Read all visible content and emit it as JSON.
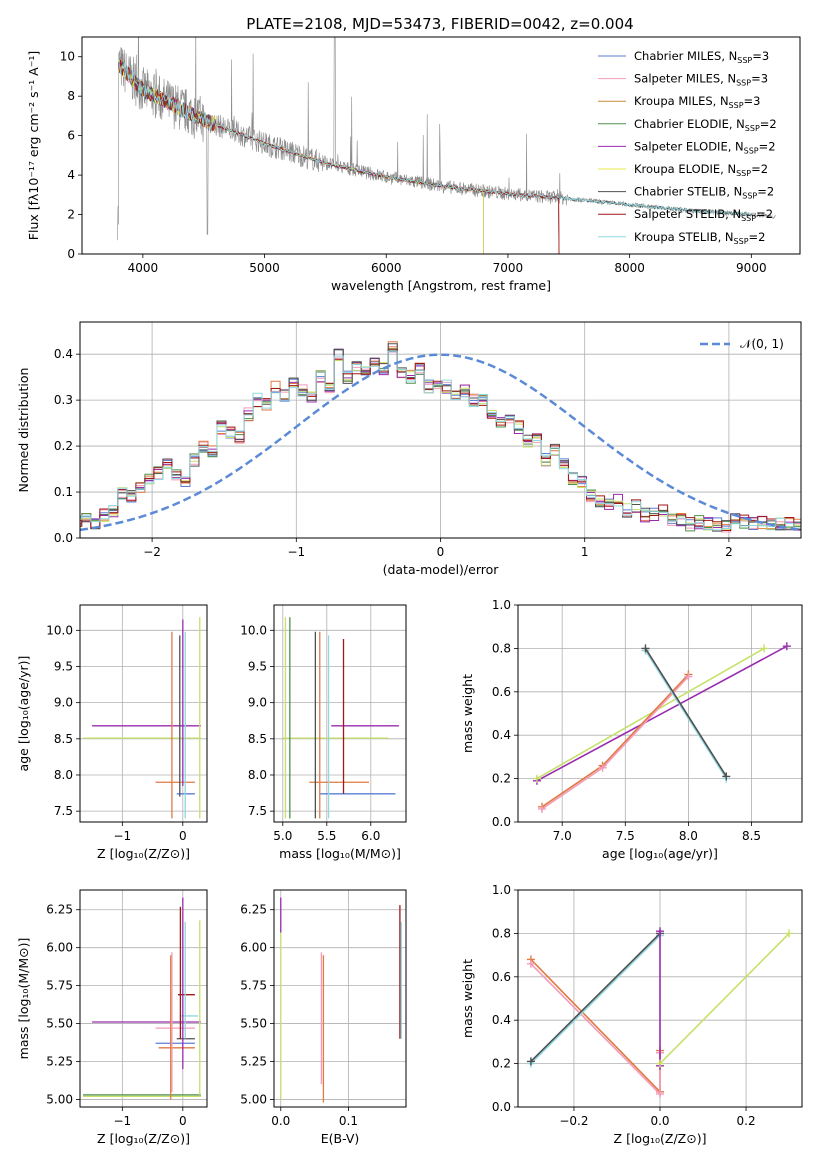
{
  "figure": {
    "title": "PLATE=2108, MJD=53473, FIBERID=0042, z=0.004"
  },
  "colors": {
    "Chabrier MILES": "#5b7fd3",
    "Salpeter MILES": "#f29bb8",
    "Kroupa MILES": "#c98a3a",
    "Chabrier ELODIE": "#4f8f4f",
    "Salpeter ELODIE": "#9a2cb0",
    "Kroupa ELODIE": "#e8e84a",
    "Chabrier STELIB": "#505050",
    "Salpeter STELIB": "#a01818",
    "Kroupa STELIB": "#8fd8e0",
    "data": "#8a8a8a",
    "gaussian": "#5b8bd6",
    "orange_model": "#e07a40",
    "green_model": "#c6e06a"
  },
  "legend_entries": [
    {
      "name": "Chabrier MILES",
      "nssp": "3"
    },
    {
      "name": "Salpeter MILES",
      "nssp": "3"
    },
    {
      "name": "Kroupa MILES",
      "nssp": "3"
    },
    {
      "name": "Chabrier ELODIE",
      "nssp": "2"
    },
    {
      "name": "Salpeter ELODIE",
      "nssp": "2"
    },
    {
      "name": "Kroupa ELODIE",
      "nssp": "2"
    },
    {
      "name": "Chabrier STELIB",
      "nssp": "2"
    },
    {
      "name": "Salpeter STELIB",
      "nssp": "2"
    },
    {
      "name": "Kroupa STELIB",
      "nssp": "2"
    }
  ],
  "chart_data": [
    {
      "id": "spectrum",
      "type": "line",
      "title": "PLATE=2108, MJD=53473, FIBERID=0042, z=0.004",
      "xlabel": "wavelength [Angstrom, rest frame]",
      "ylabel": "Flux [fλ10⁻¹⁷ erg cm⁻² s⁻¹ A⁻¹]",
      "xlim": [
        3500,
        9400
      ],
      "ylim": [
        0,
        11
      ],
      "xticks": [
        4000,
        5000,
        6000,
        7000,
        8000,
        9000
      ],
      "yticks": [
        0,
        2,
        4,
        6,
        8,
        10
      ],
      "grid": false,
      "legend": "top-right",
      "continuum": {
        "x": [
          3800,
          4000,
          4500,
          5000,
          5500,
          6000,
          6500,
          7000,
          7500,
          8000,
          8500,
          9000,
          9200
        ],
        "y": [
          9.6,
          8.3,
          6.8,
          5.6,
          4.6,
          3.9,
          3.4,
          3.05,
          2.8,
          2.5,
          2.2,
          2.0,
          1.9
        ]
      },
      "model_cutoffs": {
        "MILES": 7400,
        "ELODIE": 6800,
        "STELIB": 9000
      }
    },
    {
      "id": "residuals",
      "type": "line",
      "xlabel": "(data-model)/error",
      "ylabel": "Normed distribution",
      "xlim": [
        -2.5,
        2.5
      ],
      "ylim": [
        0,
        0.47
      ],
      "xticks": [
        -2,
        -1,
        0,
        1,
        2
      ],
      "yticks": [
        0.0,
        0.1,
        0.2,
        0.3,
        0.4
      ],
      "grid": true,
      "legend": "top-right",
      "legend_label": "𝒩(0, 1)",
      "bin_width": 0.1,
      "hist_base": [
        0.04,
        0.045,
        0.03,
        0.05,
        0.06,
        0.1,
        0.09,
        0.11,
        0.13,
        0.14,
        0.16,
        0.14,
        0.12,
        0.17,
        0.2,
        0.19,
        0.24,
        0.23,
        0.22,
        0.27,
        0.3,
        0.29,
        0.33,
        0.31,
        0.34,
        0.32,
        0.31,
        0.35,
        0.33,
        0.4,
        0.35,
        0.37,
        0.36,
        0.38,
        0.37,
        0.42,
        0.36,
        0.35,
        0.37,
        0.33,
        0.34,
        0.33,
        0.31,
        0.32,
        0.3,
        0.3,
        0.27,
        0.25,
        0.26,
        0.24,
        0.21,
        0.22,
        0.17,
        0.19,
        0.16,
        0.13,
        0.12,
        0.09,
        0.08,
        0.07,
        0.08,
        0.06,
        0.07,
        0.05,
        0.05,
        0.06,
        0.04,
        0.04,
        0.03,
        0.035,
        0.03,
        0.03,
        0.025,
        0.04,
        0.035,
        0.03,
        0.035,
        0.03,
        0.03,
        0.03,
        0.03
      ]
    },
    {
      "id": "age_vs_Z",
      "type": "scatter",
      "xlabel": "Z [log₁₀(Z/Z⊙)]",
      "ylabel": "age  [log₁₀(age/yr)]",
      "xlim": [
        -1.7,
        0.4
      ],
      "ylim": [
        7.35,
        10.35
      ],
      "xticks": [
        -1,
        0
      ],
      "yticks": [
        7.5,
        8.0,
        8.5,
        9.0,
        9.5,
        10.0
      ],
      "grid": true,
      "hlines": [
        {
          "y": 8.68,
          "x0": -1.5,
          "x1": 0.3,
          "color": "#9a2cb0"
        },
        {
          "y": 8.51,
          "x0": -1.65,
          "x1": 0.3,
          "color": "#c6e06a"
        },
        {
          "y": 7.9,
          "x0": -0.45,
          "x1": 0.2,
          "color": "#e07a40"
        },
        {
          "y": 7.74,
          "x0": -0.1,
          "x1": 0.2,
          "color": "#5b7fd3"
        }
      ],
      "vlines": [
        {
          "x": -0.18,
          "y0": 7.4,
          "y1": 9.98,
          "color": "#e07a40"
        },
        {
          "x": -0.05,
          "y0": 7.7,
          "y1": 9.93,
          "color": "#505050"
        },
        {
          "x": 0.0,
          "y0": 7.85,
          "y1": 10.15,
          "color": "#9a2cb0"
        },
        {
          "x": 0.28,
          "y0": 7.4,
          "y1": 10.18,
          "color": "#c6e06a"
        },
        {
          "x": 0.04,
          "y0": 7.4,
          "y1": 9.98,
          "color": "#8fd8e0"
        }
      ]
    },
    {
      "id": "age_vs_mass",
      "type": "scatter",
      "xlabel": "mass [log₁₀(M/M⊙)]",
      "ylabel": "",
      "xlim": [
        4.9,
        6.4
      ],
      "ylim": [
        7.35,
        10.35
      ],
      "xticks": [
        5.0,
        5.5,
        6.0
      ],
      "yticks": [
        7.5,
        8.0,
        8.5,
        9.0,
        9.5,
        10.0
      ],
      "grid": true,
      "hlines": [
        {
          "y": 8.68,
          "x0": 5.55,
          "x1": 6.32,
          "color": "#9a2cb0"
        },
        {
          "y": 8.51,
          "x0": 5.0,
          "x1": 6.2,
          "color": "#c6e06a"
        },
        {
          "y": 7.9,
          "x0": 5.3,
          "x1": 5.98,
          "color": "#e07a40"
        },
        {
          "y": 7.74,
          "x0": 5.42,
          "x1": 6.28,
          "color": "#5b7fd3"
        }
      ],
      "vlines": [
        {
          "x": 5.03,
          "y0": 7.4,
          "y1": 10.18,
          "color": "#c6e06a"
        },
        {
          "x": 5.08,
          "y0": 7.4,
          "y1": 10.18,
          "color": "#4f8f4f"
        },
        {
          "x": 5.37,
          "y0": 7.4,
          "y1": 9.98,
          "color": "#505050"
        },
        {
          "x": 5.42,
          "y0": 7.4,
          "y1": 9.98,
          "color": "#e07a40"
        },
        {
          "x": 5.52,
          "y0": 7.4,
          "y1": 9.93,
          "color": "#8fd8e0"
        },
        {
          "x": 5.69,
          "y0": 7.74,
          "y1": 9.88,
          "color": "#a01818"
        }
      ]
    },
    {
      "id": "weight_vs_age",
      "type": "line",
      "xlabel": "age  [log₁₀(age/yr)]",
      "ylabel": "mass weight",
      "xlim": [
        6.65,
        8.9
      ],
      "ylim": [
        0.0,
        1.0
      ],
      "xticks": [
        7.0,
        7.5,
        8.0,
        8.5
      ],
      "yticks": [
        0.0,
        0.2,
        0.4,
        0.6,
        0.8,
        1.0
      ],
      "grid": true,
      "series": [
        {
          "color": "#9a2cb0",
          "x": [
            6.8,
            8.78
          ],
          "y": [
            0.19,
            0.81
          ]
        },
        {
          "color": "#c6e06a",
          "x": [
            6.8,
            8.6
          ],
          "y": [
            0.2,
            0.8
          ]
        },
        {
          "color": "#e07a40",
          "x": [
            6.84,
            7.32,
            8.0
          ],
          "y": [
            0.07,
            0.26,
            0.68
          ]
        },
        {
          "color": "#f29bb8",
          "x": [
            6.84,
            7.32,
            8.0
          ],
          "y": [
            0.06,
            0.25,
            0.67
          ]
        },
        {
          "color": "#8fd8e0",
          "x": [
            7.66,
            8.3
          ],
          "y": [
            0.79,
            0.2
          ]
        },
        {
          "color": "#505050",
          "x": [
            7.66,
            8.3
          ],
          "y": [
            0.8,
            0.21
          ]
        }
      ]
    },
    {
      "id": "mass_vs_Z",
      "type": "scatter",
      "xlabel": "Z [log₁₀(Z/Z⊙)]",
      "ylabel": "mass [log₁₀(M/M⊙)]",
      "xlim": [
        -1.7,
        0.4
      ],
      "ylim": [
        4.95,
        6.38
      ],
      "xticks": [
        -1,
        0
      ],
      "yticks": [
        5.0,
        5.25,
        5.5,
        5.75,
        6.0,
        6.25
      ],
      "grid": true,
      "hlines": [
        {
          "y": 5.69,
          "x0": -0.08,
          "x1": 0.2,
          "color": "#a01818"
        },
        {
          "y": 5.55,
          "x0": -0.05,
          "x1": 0.25,
          "color": "#8fd8e0"
        },
        {
          "y": 5.51,
          "x0": -1.5,
          "x1": 0.3,
          "color": "#9a2cb0"
        },
        {
          "y": 5.47,
          "x0": -0.45,
          "x1": 0.2,
          "color": "#f29bb8"
        },
        {
          "y": 5.4,
          "x0": -0.1,
          "x1": 0.2,
          "color": "#505050"
        },
        {
          "y": 5.37,
          "x0": -0.45,
          "x1": 0.2,
          "color": "#5b7fd3"
        },
        {
          "y": 5.34,
          "x0": -0.4,
          "x1": 0.2,
          "color": "#e07a40"
        },
        {
          "y": 5.03,
          "x0": -1.65,
          "x1": 0.3,
          "color": "#4f8f4f"
        },
        {
          "y": 5.02,
          "x0": -1.65,
          "x1": 0.3,
          "color": "#c6e06a"
        }
      ],
      "vlines": [
        {
          "x": -0.2,
          "y0": 5.0,
          "y1": 5.95,
          "color": "#e07a40"
        },
        {
          "x": -0.18,
          "y0": 5.05,
          "y1": 5.97,
          "color": "#f29bb8"
        },
        {
          "x": -0.04,
          "y0": 5.4,
          "y1": 6.27,
          "color": "#a01818"
        },
        {
          "x": 0.0,
          "y0": 5.2,
          "y1": 6.33,
          "color": "#9a2cb0"
        },
        {
          "x": 0.04,
          "y0": 5.4,
          "y1": 6.17,
          "color": "#8fd8e0"
        },
        {
          "x": 0.28,
          "y0": 5.03,
          "y1": 6.18,
          "color": "#c6e06a"
        }
      ]
    },
    {
      "id": "mass_vs_ebv",
      "type": "scatter",
      "xlabel": "E(B-V)",
      "ylabel": "",
      "xlim": [
        -0.01,
        0.185
      ],
      "ylim": [
        4.95,
        6.38
      ],
      "xticks": [
        0.0,
        0.1
      ],
      "yticks": [
        5.0,
        5.25,
        5.5,
        5.75,
        6.0,
        6.25
      ],
      "grid": true,
      "vlines": [
        {
          "x": 0.0,
          "y0": 5.0,
          "y1": 6.18,
          "color": "#c6e06a"
        },
        {
          "x": 0.0,
          "y0": 6.1,
          "y1": 6.33,
          "color": "#9a2cb0"
        },
        {
          "x": 0.06,
          "y0": 5.1,
          "y1": 5.97,
          "color": "#f29bb8"
        },
        {
          "x": 0.063,
          "y0": 4.98,
          "y1": 5.95,
          "color": "#e07a40"
        },
        {
          "x": 0.176,
          "y0": 5.4,
          "y1": 6.28,
          "color": "#a01818"
        },
        {
          "x": 0.178,
          "y0": 5.4,
          "y1": 6.17,
          "color": "#8fd8e0"
        }
      ]
    },
    {
      "id": "weight_vs_Z",
      "type": "line",
      "xlabel": "Z [log₁₀(Z/Z⊙)]",
      "ylabel": "mass weight",
      "xlim": [
        -0.33,
        0.33
      ],
      "ylim": [
        0.0,
        1.0
      ],
      "xticks": [
        -0.2,
        0.0,
        0.2
      ],
      "yticks": [
        0.0,
        0.2,
        0.4,
        0.6,
        0.8,
        1.0
      ],
      "grid": true,
      "series": [
        {
          "color": "#e07a40",
          "x": [
            -0.3,
            0.0,
            0.0
          ],
          "y": [
            0.68,
            0.07,
            0.26
          ]
        },
        {
          "color": "#f29bb8",
          "x": [
            -0.3,
            0.0,
            0.0
          ],
          "y": [
            0.66,
            0.06,
            0.25
          ]
        },
        {
          "color": "#8fd8e0",
          "x": [
            -0.3,
            0.0
          ],
          "y": [
            0.2,
            0.79
          ]
        },
        {
          "color": "#505050",
          "x": [
            -0.3,
            0.0
          ],
          "y": [
            0.21,
            0.8
          ]
        },
        {
          "color": "#9a2cb0",
          "x": [
            0.0,
            0.0
          ],
          "y": [
            0.19,
            0.81
          ]
        },
        {
          "color": "#c6e06a",
          "x": [
            0.0,
            0.3
          ],
          "y": [
            0.2,
            0.8
          ]
        }
      ]
    }
  ]
}
